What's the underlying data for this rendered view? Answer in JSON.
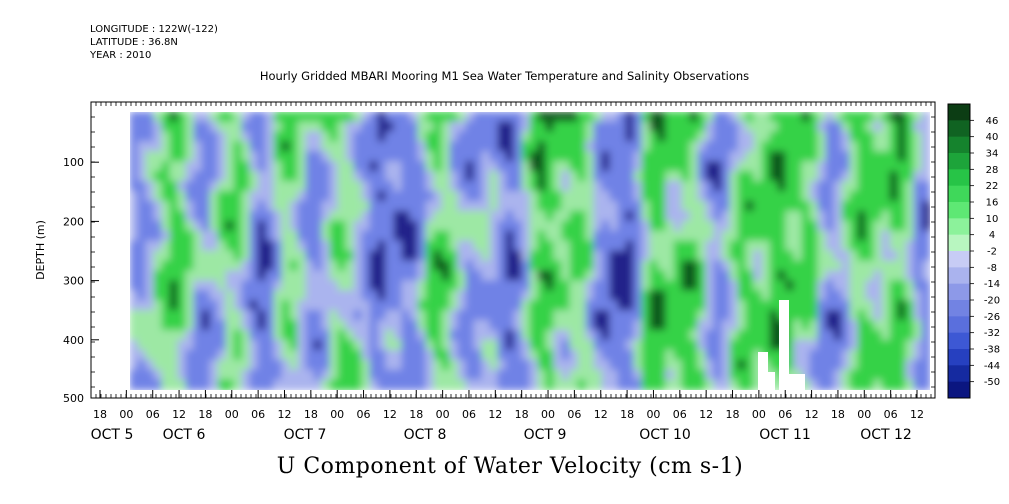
{
  "header": {
    "longitude": "LONGITUDE : 122W(-122)",
    "latitude": "LATITUDE : 36.8N",
    "year": "YEAR : 2010"
  },
  "chart_data": {
    "type": "heatmap",
    "title": "Hourly Gridded MBARI Mooring M1 Sea Water Temperature and Salinity Observations",
    "xlabel": "U Component of Water Velocity (cm s-1)",
    "ylabel": "DEPTH (m)",
    "ylim": [
      500,
      0
    ],
    "yticks": [
      100,
      200,
      300,
      400,
      500
    ],
    "x_hour_ticks": [
      "18",
      "00",
      "06",
      "12",
      "18",
      "00",
      "06",
      "12",
      "18",
      "00",
      "06",
      "12",
      "18",
      "00",
      "06",
      "12",
      "18",
      "00",
      "06",
      "12",
      "18",
      "00",
      "06",
      "12",
      "18",
      "00",
      "06",
      "12",
      "18",
      "00",
      "06",
      "12"
    ],
    "x_day_labels": [
      "OCT  5",
      "OCT  6",
      "OCT  7",
      "OCT  8",
      "OCT  9",
      "OCT 10",
      "OCT 11",
      "OCT 12"
    ],
    "colorbar_levels": [
      "46",
      "40",
      "34",
      "28",
      "22",
      "16",
      "10",
      "4",
      "-2",
      "-8",
      "-14",
      "-20",
      "-26",
      "-32",
      "-38",
      "-44",
      "-50"
    ],
    "colors": {
      "strong_neg": "#20208a",
      "neg": "#6f82e6",
      "weak_neg": "#aab4ee",
      "weak_pos": "#9de8a4",
      "pos": "#35d247",
      "strong_pos": "#0f5a1e"
    }
  }
}
